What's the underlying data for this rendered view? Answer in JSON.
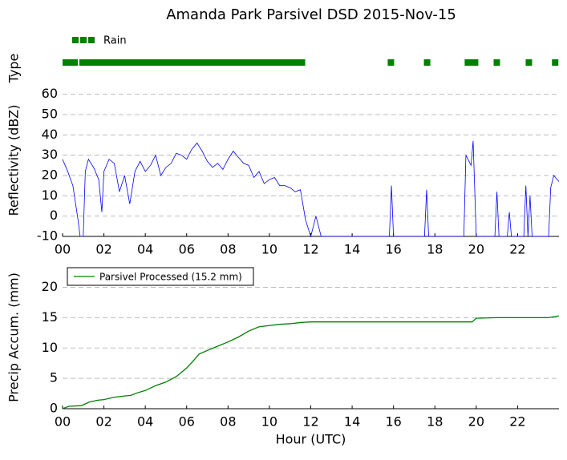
{
  "title": "Amanda Park Parsivel DSD 2015-Nov-15",
  "chart_data": [
    {
      "type": "timeline",
      "ylabel": "Type",
      "xlim": [
        0,
        24
      ],
      "series": [
        {
          "name": "Rain",
          "color": "#008000",
          "intervals": [
            [
              0,
              0.74
            ],
            [
              0.81,
              11.73
            ],
            [
              15.72,
              16.03
            ],
            [
              17.47,
              17.78
            ],
            [
              19.44,
              20.1
            ],
            [
              20.84,
              21.15
            ],
            [
              22.39,
              22.7
            ],
            [
              23.66,
              23.97
            ]
          ]
        }
      ]
    },
    {
      "type": "line",
      "ylabel": "Reflectivity (dBZ)",
      "xlim": [
        0,
        24
      ],
      "ylim": [
        -10,
        65
      ],
      "grid": true,
      "xticks": [
        {
          "value": 0,
          "label": "00"
        },
        {
          "value": 2,
          "label": "02"
        },
        {
          "value": 4,
          "label": "04"
        },
        {
          "value": 6,
          "label": "06"
        },
        {
          "value": 8,
          "label": "08"
        },
        10,
        12,
        14,
        16,
        18,
        20,
        22
      ],
      "yticks": [
        -10,
        0,
        10,
        20,
        30,
        40,
        50,
        60
      ],
      "x": [
        0,
        0.25,
        0.5,
        0.75,
        0.85,
        1.0,
        1.1,
        1.25,
        1.5,
        1.75,
        1.9,
        2.0,
        2.25,
        2.5,
        2.75,
        3.0,
        3.25,
        3.5,
        3.75,
        4.0,
        4.25,
        4.5,
        4.75,
        5.0,
        5.25,
        5.5,
        5.75,
        6.0,
        6.25,
        6.5,
        6.75,
        7.0,
        7.25,
        7.5,
        7.75,
        8.0,
        8.25,
        8.5,
        8.75,
        9.0,
        9.25,
        9.5,
        9.75,
        10.0,
        10.25,
        10.5,
        10.75,
        11.0,
        11.25,
        11.5,
        11.75,
        12.0,
        12.25,
        12.5,
        14,
        15.8,
        15.9,
        16.0,
        17.5,
        17.6,
        17.7,
        19.4,
        19.5,
        19.75,
        19.85,
        20.0,
        20.9,
        21.0,
        21.1,
        21.5,
        21.6,
        21.7,
        22.3,
        22.4,
        22.5,
        22.6,
        22.7,
        23.5,
        23.6,
        23.75,
        24
      ],
      "series": [
        {
          "color": "#0000ff",
          "values": [
            28,
            22,
            15,
            -2,
            -10,
            -10,
            22,
            28,
            24,
            18,
            2,
            22,
            28,
            26,
            12,
            20,
            6,
            22,
            27,
            22,
            25,
            30,
            20,
            24,
            26,
            31,
            30,
            28,
            33,
            36,
            32,
            27,
            24,
            26,
            23,
            28,
            32,
            29,
            26,
            25,
            19,
            22,
            16,
            18,
            19,
            15,
            15,
            14,
            12,
            13,
            -2,
            -10,
            0,
            -10,
            -10,
            -10,
            15,
            -10,
            -10,
            13,
            -10,
            -10,
            30,
            25,
            37,
            -10,
            -10,
            12,
            -10,
            -10,
            2,
            -10,
            -10,
            15,
            -10,
            10,
            -10,
            -10,
            14,
            20,
            17
          ]
        }
      ]
    },
    {
      "type": "line",
      "ylabel": "Precip Accum. (mm)",
      "xlabel": "Hour (UTC)",
      "xlim": [
        0,
        24
      ],
      "ylim": [
        0,
        23.5
      ],
      "grid": true,
      "legend": "upper left",
      "xticks": [
        {
          "value": 0,
          "label": "00"
        },
        {
          "value": 2,
          "label": "02"
        },
        {
          "value": 4,
          "label": "04"
        },
        {
          "value": 6,
          "label": "06"
        },
        {
          "value": 8,
          "label": "08"
        },
        10,
        12,
        14,
        16,
        18,
        20,
        22
      ],
      "yticks": [
        0,
        5,
        10,
        15,
        20
      ],
      "x": [
        0,
        0.3,
        0.9,
        1.3,
        1.7,
        2.0,
        2.5,
        3.0,
        3.3,
        3.6,
        4.0,
        4.5,
        5.0,
        5.5,
        6.0,
        6.3,
        6.6,
        7.0,
        7.5,
        8.0,
        8.5,
        9.0,
        9.5,
        10.0,
        10.5,
        11.0,
        11.5,
        12.0,
        14,
        16,
        18,
        19.8,
        20.0,
        21,
        22,
        23.5,
        24
      ],
      "series": [
        {
          "name": "Parsivel Processed (15.2 mm)",
          "color": "#008000",
          "values": [
            0,
            0.4,
            0.5,
            1.1,
            1.4,
            1.5,
            1.9,
            2.1,
            2.2,
            2.6,
            3.0,
            3.8,
            4.4,
            5.3,
            6.7,
            7.8,
            9.0,
            9.6,
            10.3,
            11.0,
            11.8,
            12.8,
            13.5,
            13.7,
            13.9,
            14.0,
            14.2,
            14.3,
            14.3,
            14.3,
            14.3,
            14.3,
            14.9,
            15.0,
            15.0,
            15.0,
            15.3
          ]
        }
      ]
    }
  ]
}
